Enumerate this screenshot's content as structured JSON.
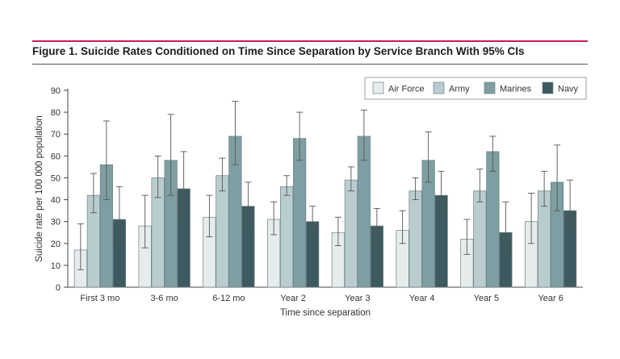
{
  "figure_title": "Figure 1. Suicide Rates Conditioned on Time Since Separation by Service Branch With 95% CIs",
  "colors": {
    "accent_rule": "#c8195a",
    "Air Force": "#e6ecec",
    "Army": "#b9cdd0",
    "Marines": "#7e9ea3",
    "Navy": "#3c5a60"
  },
  "chart_data": {
    "type": "bar",
    "title": "Figure 1. Suicide Rates Conditioned on Time Since Separation by Service Branch With 95% CIs",
    "xlabel": "Time since separation",
    "ylabel": "Suicide rate per 100 000 population",
    "ylim": [
      0,
      90
    ],
    "yticks": [
      0,
      10,
      20,
      30,
      40,
      50,
      60,
      70,
      80,
      90
    ],
    "grid": false,
    "legend_position": "top-right",
    "categories": [
      "First 3 mo",
      "3-6 mo",
      "6-12 mo",
      "Year 2",
      "Year 3",
      "Year 4",
      "Year 5",
      "Year 6"
    ],
    "series": [
      {
        "name": "Air Force",
        "values": [
          17,
          28,
          32,
          31,
          25,
          26,
          22,
          30
        ],
        "ci_low": [
          8,
          18,
          23,
          24,
          19,
          20,
          15,
          20
        ],
        "ci_high": [
          29,
          42,
          42,
          39,
          32,
          35,
          31,
          43
        ]
      },
      {
        "name": "Army",
        "values": [
          42,
          50,
          51,
          46,
          49,
          44,
          44,
          44
        ],
        "ci_low": [
          34,
          41,
          44,
          42,
          44,
          40,
          39,
          37
        ],
        "ci_high": [
          52,
          60,
          59,
          51,
          55,
          50,
          54,
          53
        ]
      },
      {
        "name": "Marines",
        "values": [
          56,
          58,
          69,
          68,
          69,
          58,
          62,
          48
        ],
        "ci_low": [
          40,
          42,
          56,
          58,
          58,
          48,
          53,
          35
        ],
        "ci_high": [
          76,
          79,
          85,
          80,
          81,
          71,
          69,
          65
        ]
      },
      {
        "name": "Navy",
        "values": [
          31,
          45,
          37,
          30,
          28,
          42,
          25,
          35
        ],
        "ci_low": [
          19,
          32,
          28,
          24,
          21,
          33,
          15,
          25
        ],
        "ci_high": [
          46,
          62,
          48,
          37,
          36,
          53,
          39,
          49
        ]
      }
    ]
  }
}
